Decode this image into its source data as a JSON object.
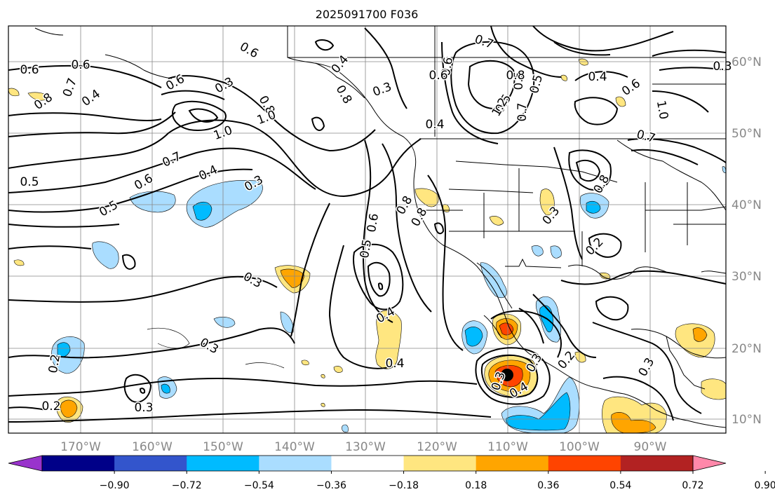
{
  "title": "2025091700 F036",
  "lon_labels": [
    "170°W",
    "160°W",
    "150°W",
    "140°W",
    "130°W",
    "120°W",
    "110°W",
    "100°W",
    "90°W"
  ],
  "lat_labels": [
    "60°N",
    "50°N",
    "40°N",
    "30°N",
    "20°N",
    "10°N"
  ],
  "colorbar": {
    "colors": [
      "#9933cc",
      "#000088",
      "#3355cc",
      "#00bbff",
      "#aaddff",
      "#ffffff",
      "#ffe680",
      "#ffa500",
      "#ff4400",
      "#b22222",
      "#ff88aa"
    ],
    "tick_labels": [
      "−0.90",
      "−0.72",
      "−0.54",
      "−0.36",
      "−0.18",
      "0.18",
      "0.36",
      "0.54",
      "0.72",
      "0.90"
    ]
  },
  "contour_labels": [
    {
      "text": "0.6"
    },
    {
      "text": "0.6"
    },
    {
      "text": "0.7"
    },
    {
      "text": "0.8"
    },
    {
      "text": "0.4"
    },
    {
      "text": "0.6"
    },
    {
      "text": "0.3"
    },
    {
      "text": "0.8"
    },
    {
      "text": "0.6"
    },
    {
      "text": "0.8"
    },
    {
      "text": "1.0"
    },
    {
      "text": "0.4"
    },
    {
      "text": "0.3"
    },
    {
      "text": "0.7"
    },
    {
      "text": "0.6"
    },
    {
      "text": "0.5"
    },
    {
      "text": "0.7"
    },
    {
      "text": "0.5"
    },
    {
      "text": "0.4"
    },
    {
      "text": "0.3"
    },
    {
      "text": "0.7"
    },
    {
      "text": "1.0"
    },
    {
      "text": "0.5"
    },
    {
      "text": "0.5"
    },
    {
      "text": "0.4"
    },
    {
      "text": "0.6"
    },
    {
      "text": "1.2"
    },
    {
      "text": "0.8"
    },
    {
      "text": "0.6"
    },
    {
      "text": "0.5"
    },
    {
      "text": "0.4"
    },
    {
      "text": "0.6"
    },
    {
      "text": "1.0"
    },
    {
      "text": "0.7"
    },
    {
      "text": "0.8"
    },
    {
      "text": "0.8"
    },
    {
      "text": "0.3"
    },
    {
      "text": "0.6"
    },
    {
      "text": "0.5"
    },
    {
      "text": "0.4"
    },
    {
      "text": "0.8"
    },
    {
      "text": "0.3"
    },
    {
      "text": "0.3"
    },
    {
      "text": "0.2"
    },
    {
      "text": "0.3"
    },
    {
      "text": "0.2"
    },
    {
      "text": "0.2"
    },
    {
      "text": "0.3"
    },
    {
      "text": "0.3"
    },
    {
      "text": "0.4"
    },
    {
      "text": "0.3"
    },
    {
      "text": "0.2"
    },
    {
      "text": "0.4"
    },
    {
      "text": "0.3"
    }
  ]
}
